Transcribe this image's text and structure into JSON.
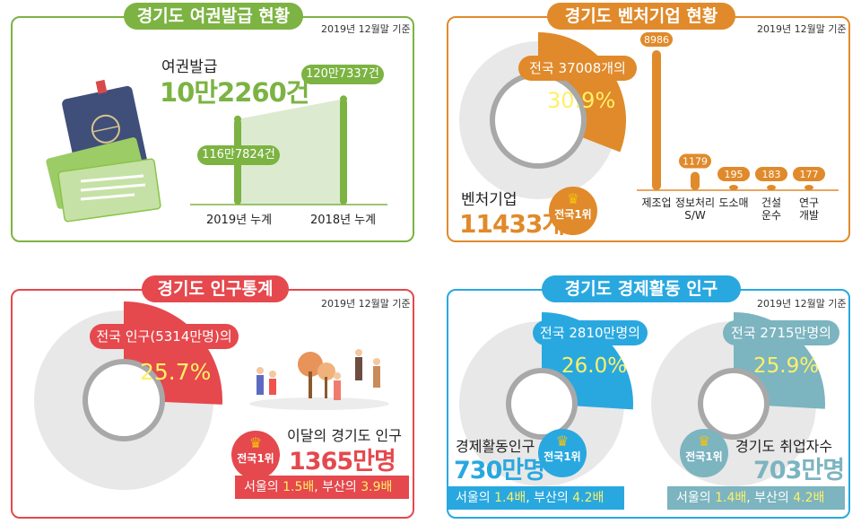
{
  "colors": {
    "passport": "#7cb342",
    "venture": "#e08a2b",
    "population": "#e5484d",
    "economic": "#29a8e0",
    "employed": "#7cb4c0",
    "accent_yellow": "#fff066",
    "gray": "#e8e8e8",
    "dark_ring": "#a8a8a8"
  },
  "icons": [
    "passport-icon",
    "ticket-icon",
    "crown-icon",
    "people-illustration-icon"
  ],
  "passport": {
    "title": "경기도 여권발급 현황",
    "basis": "2019년 12월말 기준",
    "label": "여권발급",
    "value": "10만2260건",
    "chart_data": {
      "type": "area",
      "categories": [
        "2019년 누계",
        "2018년 누계"
      ],
      "values": [
        1167824,
        1207337
      ],
      "data_labels": [
        "116만7824건",
        "120만7337건"
      ]
    }
  },
  "venture": {
    "title": "경기도 벤처기업 현황",
    "basis": "2019년 12월말 기준",
    "donut_pill": "전국 37008개의",
    "share": "30.9%",
    "share_fraction": 0.309,
    "label": "벤처기업",
    "value": "11433개",
    "badge": "전국1위",
    "chart_data": {
      "type": "bar",
      "categories": [
        "제조업",
        "정보처리 S/W",
        "도소매",
        "건설 운수",
        "연구 개발"
      ],
      "category_lines": [
        [
          "제조업"
        ],
        [
          "정보처리",
          "S/W"
        ],
        [
          "도소매"
        ],
        [
          "건설",
          "운수"
        ],
        [
          "연구",
          "개발"
        ]
      ],
      "values": [
        8986,
        1179,
        195,
        183,
        177
      ],
      "data_labels": [
        "8986",
        "1179",
        "195",
        "183",
        "177"
      ]
    }
  },
  "population": {
    "title": "경기도 인구통계",
    "basis": "2019년 12월말 기준",
    "donut_pill": "전국 인구(5314만명)의",
    "share": "25.7%",
    "share_fraction": 0.257,
    "badge": "전국1위",
    "label": "이달의 경기도 인구",
    "value": "1365만명",
    "compare": {
      "a": "서울의 ",
      "b": "1.5배",
      "c": ", 부산의 ",
      "d": "3.9배"
    }
  },
  "economic": {
    "title": "경기도 경제활동 인구",
    "basis": "2019년 12월말 기준",
    "left": {
      "donut_pill": "전국 2810만명의",
      "share": "26.0%",
      "share_fraction": 0.26,
      "label": "경제활동인구",
      "value": "730만명",
      "badge": "전국1위",
      "compare": {
        "a": "서울의 ",
        "b": "1.4배",
        "c": ", 부산의 ",
        "d": "4.2배"
      }
    },
    "right": {
      "donut_pill": "전국 2715만명의",
      "share": "25.9%",
      "share_fraction": 0.259,
      "label": "경기도 취업자수",
      "value": "703만명",
      "badge": "전국1위",
      "compare": {
        "a": "서울의 ",
        "b": "1.4배",
        "c": ", 부산의 ",
        "d": "4.2배"
      }
    }
  }
}
